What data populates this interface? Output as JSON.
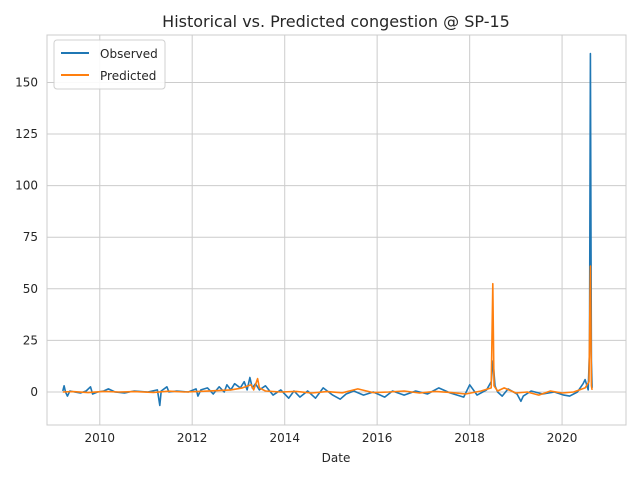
{
  "chart_data": {
    "type": "line",
    "title": "Historical vs. Predicted congestion @ SP-15",
    "xlabel": "Date",
    "ylabel": "",
    "xlim": [
      "2008-11-10",
      "2021-05-20"
    ],
    "ylim": [
      -16,
      173
    ],
    "x_ticks": [
      "2010",
      "2012",
      "2014",
      "2016",
      "2018",
      "2020"
    ],
    "y_ticks": [
      0,
      25,
      50,
      75,
      100,
      125,
      150
    ],
    "grid": true,
    "legend_position": "top-left",
    "series": [
      {
        "name": "Observed",
        "color": "#1f77b4",
        "points": [
          [
            "2009-03-15",
            0.5
          ],
          [
            "2009-03-25",
            3.0
          ],
          [
            "2009-04-05",
            0.0
          ],
          [
            "2009-04-20",
            -2.0
          ],
          [
            "2009-05-10",
            0.5
          ],
          [
            "2009-06-15",
            0.0
          ],
          [
            "2009-08-01",
            -0.5
          ],
          [
            "2009-09-15",
            0.5
          ],
          [
            "2009-10-20",
            2.5
          ],
          [
            "2009-11-05",
            -1.0
          ],
          [
            "2009-12-15",
            0.0
          ],
          [
            "2010-02-01",
            0.5
          ],
          [
            "2010-03-10",
            1.5
          ],
          [
            "2010-05-01",
            0.0
          ],
          [
            "2010-07-15",
            -0.5
          ],
          [
            "2010-10-01",
            0.5
          ],
          [
            "2011-01-15",
            0.0
          ],
          [
            "2011-04-01",
            1.0
          ],
          [
            "2011-04-20",
            -6.5
          ],
          [
            "2011-05-01",
            0.5
          ],
          [
            "2011-06-15",
            2.5
          ],
          [
            "2011-07-01",
            0.0
          ],
          [
            "2011-09-01",
            0.5
          ],
          [
            "2011-12-01",
            0.0
          ],
          [
            "2012-02-01",
            1.5
          ],
          [
            "2012-02-15",
            -2.0
          ],
          [
            "2012-03-10",
            1.0
          ],
          [
            "2012-05-01",
            2.0
          ],
          [
            "2012-06-15",
            -1.0
          ],
          [
            "2012-08-01",
            2.5
          ],
          [
            "2012-09-10",
            0.0
          ],
          [
            "2012-10-01",
            3.5
          ],
          [
            "2012-11-01",
            1.0
          ],
          [
            "2012-12-01",
            4.0
          ],
          [
            "2013-01-15",
            2.0
          ],
          [
            "2013-02-15",
            5.0
          ],
          [
            "2013-03-10",
            1.0
          ],
          [
            "2013-04-01",
            7.0
          ],
          [
            "2013-04-20",
            2.0
          ],
          [
            "2013-05-15",
            4.0
          ],
          [
            "2013-06-15",
            1.0
          ],
          [
            "2013-08-01",
            3.0
          ],
          [
            "2013-10-01",
            -1.5
          ],
          [
            "2013-12-01",
            1.0
          ],
          [
            "2014-02-01",
            -3.0
          ],
          [
            "2014-03-15",
            0.5
          ],
          [
            "2014-05-01",
            -2.5
          ],
          [
            "2014-07-01",
            0.5
          ],
          [
            "2014-09-01",
            -3.0
          ],
          [
            "2014-11-01",
            2.0
          ],
          [
            "2015-01-15",
            -1.5
          ],
          [
            "2015-03-15",
            -3.5
          ],
          [
            "2015-05-01",
            -1.0
          ],
          [
            "2015-07-01",
            0.5
          ],
          [
            "2015-09-15",
            -1.5
          ],
          [
            "2015-12-01",
            0.0
          ],
          [
            "2016-03-01",
            -2.5
          ],
          [
            "2016-05-01",
            0.5
          ],
          [
            "2016-08-01",
            -1.5
          ],
          [
            "2016-11-01",
            0.5
          ],
          [
            "2017-02-01",
            -1.0
          ],
          [
            "2017-05-01",
            2.0
          ],
          [
            "2017-08-01",
            -0.5
          ],
          [
            "2017-11-15",
            -2.5
          ],
          [
            "2018-01-01",
            3.5
          ],
          [
            "2018-03-01",
            -1.5
          ],
          [
            "2018-05-15",
            1.0
          ],
          [
            "2018-06-20",
            5.0
          ],
          [
            "2018-07-05",
            15.0
          ],
          [
            "2018-07-20",
            3.0
          ],
          [
            "2018-08-10",
            0.0
          ],
          [
            "2018-09-15",
            -2.0
          ],
          [
            "2018-11-01",
            1.5
          ],
          [
            "2019-01-10",
            -1.0
          ],
          [
            "2019-02-10",
            -4.5
          ],
          [
            "2019-03-01",
            -2.0
          ],
          [
            "2019-05-01",
            0.5
          ],
          [
            "2019-08-01",
            -1.0
          ],
          [
            "2019-11-01",
            0.0
          ],
          [
            "2020-01-15",
            -1.5
          ],
          [
            "2020-03-01",
            -2.0
          ],
          [
            "2020-05-01",
            0.0
          ],
          [
            "2020-06-15",
            4.0
          ],
          [
            "2020-07-01",
            6.0
          ],
          [
            "2020-07-25",
            1.0
          ],
          [
            "2020-08-05",
            20.0
          ],
          [
            "2020-08-12",
            164.0
          ],
          [
            "2020-08-20",
            15.0
          ],
          [
            "2020-08-25",
            2.0
          ]
        ]
      },
      {
        "name": "Predicted",
        "color": "#ff7f0e",
        "points": [
          [
            "2009-03-15",
            0.0
          ],
          [
            "2009-06-01",
            0.2
          ],
          [
            "2009-10-01",
            -0.3
          ],
          [
            "2010-02-01",
            0.3
          ],
          [
            "2010-06-01",
            0.0
          ],
          [
            "2010-10-01",
            0.2
          ],
          [
            "2011-03-01",
            -0.2
          ],
          [
            "2011-07-01",
            0.4
          ],
          [
            "2011-11-01",
            0.0
          ],
          [
            "2012-03-01",
            0.3
          ],
          [
            "2012-07-01",
            0.6
          ],
          [
            "2012-11-01",
            1.0
          ],
          [
            "2013-02-01",
            2.0
          ],
          [
            "2013-04-10",
            3.5
          ],
          [
            "2013-05-01",
            1.0
          ],
          [
            "2013-06-01",
            6.5
          ],
          [
            "2013-06-15",
            2.0
          ],
          [
            "2013-08-01",
            0.5
          ],
          [
            "2013-12-01",
            0.0
          ],
          [
            "2014-04-01",
            0.3
          ],
          [
            "2014-08-01",
            -0.5
          ],
          [
            "2014-12-01",
            0.2
          ],
          [
            "2015-04-01",
            -0.4
          ],
          [
            "2015-08-01",
            1.5
          ],
          [
            "2015-12-01",
            -0.3
          ],
          [
            "2016-04-01",
            0.0
          ],
          [
            "2016-08-01",
            0.5
          ],
          [
            "2016-12-01",
            -0.5
          ],
          [
            "2017-04-01",
            0.3
          ],
          [
            "2017-08-01",
            -0.2
          ],
          [
            "2017-12-01",
            -1.0
          ],
          [
            "2018-04-01",
            0.5
          ],
          [
            "2018-06-20",
            2.0
          ],
          [
            "2018-07-03",
            52.5
          ],
          [
            "2018-07-12",
            3.0
          ],
          [
            "2018-08-10",
            0.5
          ],
          [
            "2018-10-01",
            2.0
          ],
          [
            "2019-01-01",
            -0.5
          ],
          [
            "2019-04-01",
            0.0
          ],
          [
            "2019-07-01",
            -1.5
          ],
          [
            "2019-10-01",
            0.5
          ],
          [
            "2020-01-01",
            -0.5
          ],
          [
            "2020-04-01",
            0.0
          ],
          [
            "2020-07-01",
            2.0
          ],
          [
            "2020-08-01",
            5.0
          ],
          [
            "2020-08-12",
            61.0
          ],
          [
            "2020-08-20",
            3.0
          ],
          [
            "2020-08-25",
            1.0
          ]
        ]
      }
    ]
  }
}
